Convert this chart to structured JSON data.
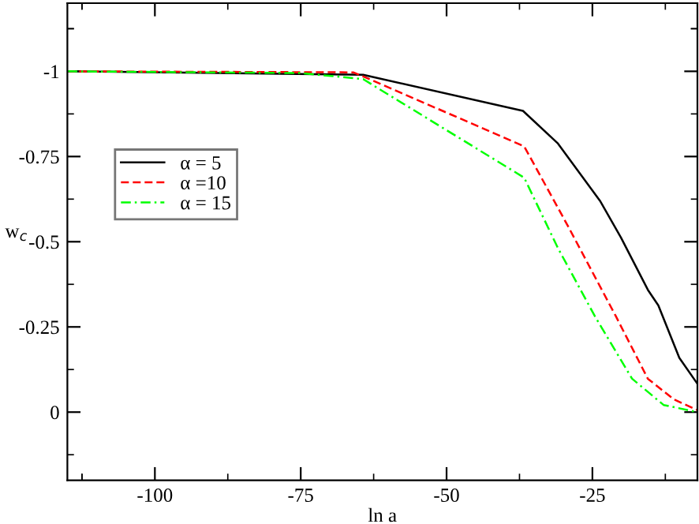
{
  "chart_data": {
    "type": "line",
    "xlabel": "ln a",
    "ylabel": "w$_{c}$",
    "xlim": [
      -115,
      -7
    ],
    "ylim": [
      0.2,
      -1.2
    ],
    "xticks": [
      -100,
      -75,
      -50,
      -25
    ],
    "yticks": [
      -1,
      -0.75,
      -0.5,
      -0.25,
      0
    ],
    "grid": false,
    "legend": "left",
    "marker": "none",
    "series": [
      {
        "name": "α = 5",
        "color": "#000000",
        "line_style": "solid",
        "x": [
          -115,
          -64.3,
          -36.9,
          -30.9,
          -23.7,
          -20.1,
          -15.5,
          -13.7,
          -10.1,
          -7
        ],
        "values": [
          -1,
          -0.99,
          -0.884,
          -0.788,
          -0.62,
          -0.512,
          -0.359,
          -0.313,
          -0.159,
          -0.083
        ]
      },
      {
        "name": "α =10",
        "color": "#ff0000",
        "line_style": "dashed",
        "x": [
          -115,
          -66,
          -64.3,
          -36.7,
          -29.1,
          -21,
          -15.5,
          -11,
          -7
        ],
        "values": [
          -1,
          -0.997,
          -0.985,
          -0.78,
          -0.543,
          -0.282,
          -0.098,
          -0.037,
          -0.006
        ]
      },
      {
        "name": "α = 15",
        "color": "#00ff00",
        "line_style": "dashdot",
        "x": [
          -115,
          -75,
          -64.3,
          -36.7,
          -30.9,
          -24.6,
          -18.2,
          -12.8,
          -7
        ],
        "values": [
          -1,
          -0.995,
          -0.977,
          -0.688,
          -0.481,
          -0.282,
          -0.098,
          -0.021,
          0
        ]
      }
    ]
  }
}
